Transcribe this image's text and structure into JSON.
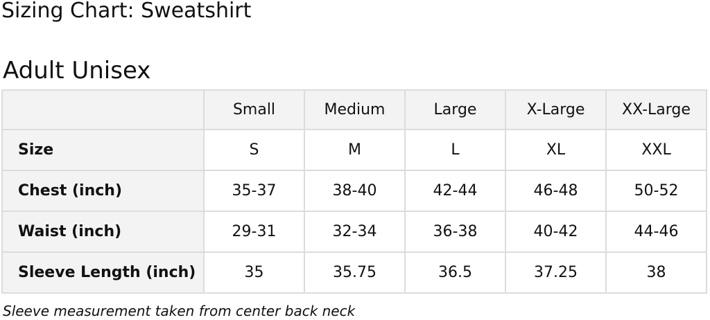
{
  "title": "Sizing Chart: Sweatshirt",
  "subtitle": "Adult Unisex",
  "table": {
    "columns": [
      "",
      "Small",
      "Medium",
      "Large",
      "X-Large",
      "XX-Large"
    ],
    "rows": [
      {
        "label": "Size",
        "values": [
          "S",
          "M",
          "L",
          "XL",
          "XXL"
        ]
      },
      {
        "label": "Chest (inch)",
        "values": [
          "35-37",
          "38-40",
          "42-44",
          "46-48",
          "50-52"
        ]
      },
      {
        "label": "Waist (inch)",
        "values": [
          "29-31",
          "32-34",
          "36-38",
          "40-42",
          "44-46"
        ]
      },
      {
        "label": "Sleeve Length (inch)",
        "values": [
          "35",
          "35.75",
          "36.5",
          "37.25",
          "38"
        ]
      }
    ]
  },
  "footnote": "Sleeve measurement taken from center back neck",
  "colors": {
    "header_bg": "#f3f3f3",
    "border": "#dcdcdc"
  }
}
